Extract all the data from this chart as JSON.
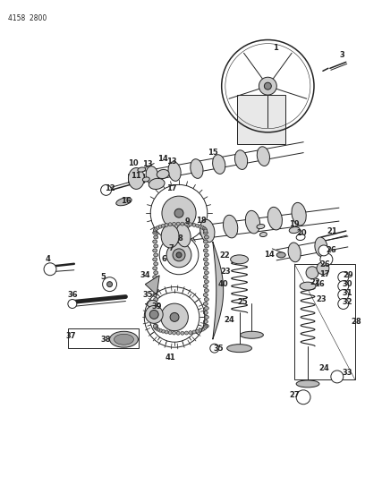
{
  "header_text": "4158  2800",
  "background_color": "#ffffff",
  "line_color": "#000000",
  "fig_width": 4.08,
  "fig_height": 5.33,
  "dpi": 100
}
